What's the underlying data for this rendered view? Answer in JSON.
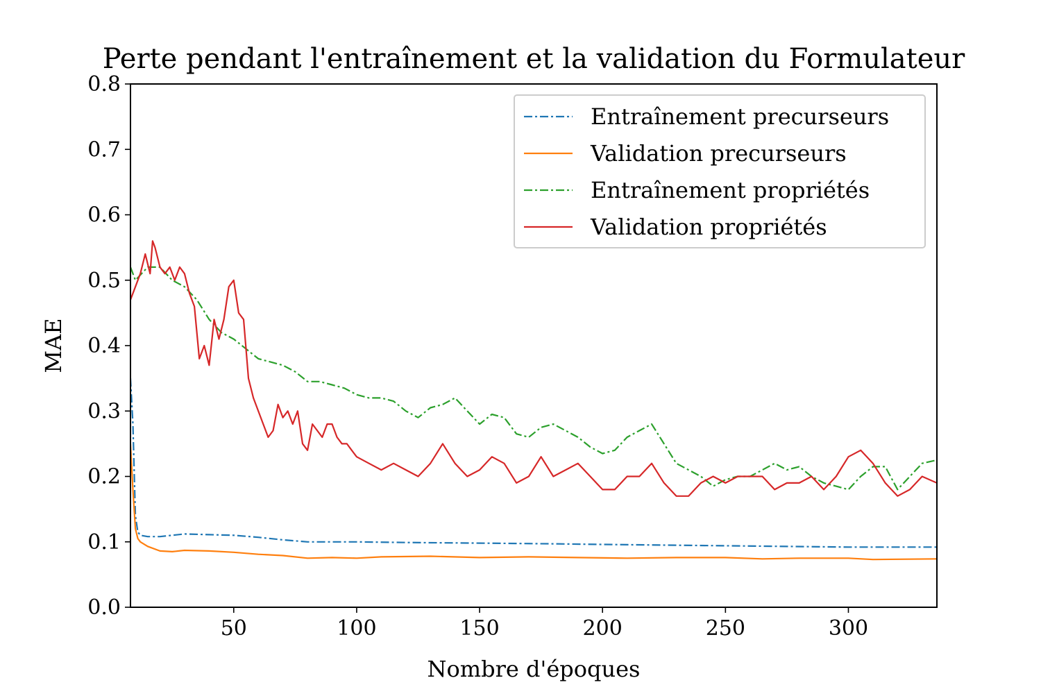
{
  "chart_data": {
    "type": "line",
    "title": "Perte pendant l'entraînement et la validation du Formulateur",
    "xlabel": "Nombre d'époques",
    "ylabel": "MAE",
    "xlim": [
      8,
      336
    ],
    "ylim": [
      0.0,
      0.8
    ],
    "xticks": [
      50,
      100,
      150,
      200,
      250,
      300
    ],
    "yticks": [
      0.0,
      0.1,
      0.2,
      0.3,
      0.4,
      0.5,
      0.6,
      0.7,
      0.8
    ],
    "xtick_labels": [
      "50",
      "100",
      "150",
      "200",
      "250",
      "300"
    ],
    "ytick_labels": [
      "0.0",
      "0.1",
      "0.2",
      "0.3",
      "0.4",
      "0.5",
      "0.6",
      "0.7",
      "0.8"
    ],
    "grid": false,
    "legend_position": "top-right",
    "series": [
      {
        "name": "Entraînement precurseurs",
        "color": "#1f77b4",
        "style": "dashdot",
        "x": [
          8,
          9,
          10,
          11,
          12,
          15,
          20,
          25,
          30,
          40,
          50,
          60,
          70,
          80,
          100,
          120,
          150,
          180,
          200,
          250,
          300,
          336
        ],
        "y": [
          0.35,
          0.28,
          0.14,
          0.115,
          0.11,
          0.108,
          0.108,
          0.11,
          0.112,
          0.111,
          0.11,
          0.107,
          0.103,
          0.1,
          0.1,
          0.099,
          0.098,
          0.097,
          0.096,
          0.094,
          0.092,
          0.092
        ]
      },
      {
        "name": "Validation precurseurs",
        "color": "#ff7f0e",
        "style": "solid",
        "x": [
          8,
          9,
          10,
          11,
          12,
          15,
          20,
          25,
          30,
          40,
          50,
          60,
          70,
          80,
          90,
          100,
          110,
          130,
          150,
          170,
          190,
          210,
          230,
          250,
          265,
          280,
          300,
          310,
          336
        ],
        "y": [
          0.25,
          0.18,
          0.12,
          0.105,
          0.1,
          0.093,
          0.086,
          0.085,
          0.087,
          0.086,
          0.084,
          0.081,
          0.079,
          0.075,
          0.076,
          0.075,
          0.077,
          0.078,
          0.076,
          0.077,
          0.076,
          0.075,
          0.076,
          0.076,
          0.074,
          0.075,
          0.075,
          0.073,
          0.074
        ]
      },
      {
        "name": "Entraînement propriétés",
        "color": "#2ca02c",
        "style": "dashdot",
        "x": [
          8,
          10,
          15,
          20,
          25,
          30,
          35,
          40,
          45,
          50,
          55,
          60,
          65,
          70,
          75,
          80,
          85,
          90,
          95,
          100,
          105,
          110,
          115,
          120,
          125,
          130,
          135,
          140,
          145,
          150,
          155,
          160,
          165,
          170,
          175,
          180,
          185,
          190,
          195,
          200,
          205,
          210,
          215,
          220,
          225,
          230,
          235,
          240,
          245,
          250,
          255,
          260,
          265,
          270,
          275,
          280,
          285,
          290,
          295,
          300,
          305,
          310,
          315,
          320,
          325,
          330,
          336
        ],
        "y": [
          0.52,
          0.5,
          0.52,
          0.52,
          0.5,
          0.49,
          0.47,
          0.44,
          0.42,
          0.41,
          0.395,
          0.38,
          0.375,
          0.37,
          0.36,
          0.345,
          0.345,
          0.34,
          0.335,
          0.325,
          0.32,
          0.32,
          0.315,
          0.3,
          0.29,
          0.305,
          0.31,
          0.32,
          0.3,
          0.28,
          0.295,
          0.29,
          0.265,
          0.26,
          0.275,
          0.28,
          0.27,
          0.26,
          0.245,
          0.235,
          0.24,
          0.26,
          0.27,
          0.28,
          0.25,
          0.22,
          0.21,
          0.2,
          0.185,
          0.195,
          0.2,
          0.2,
          0.21,
          0.22,
          0.21,
          0.215,
          0.2,
          0.19,
          0.185,
          0.18,
          0.2,
          0.215,
          0.215,
          0.18,
          0.2,
          0.22,
          0.225
        ]
      },
      {
        "name": "Validation propriétés",
        "color": "#d62728",
        "style": "solid",
        "x": [
          8,
          10,
          12,
          14,
          16,
          17,
          18,
          20,
          22,
          24,
          26,
          28,
          30,
          32,
          34,
          36,
          38,
          40,
          42,
          44,
          46,
          48,
          50,
          52,
          54,
          56,
          58,
          60,
          62,
          64,
          66,
          68,
          70,
          72,
          74,
          76,
          78,
          80,
          82,
          84,
          86,
          88,
          90,
          92,
          94,
          96,
          98,
          100,
          105,
          110,
          115,
          120,
          125,
          130,
          135,
          140,
          145,
          150,
          155,
          160,
          165,
          170,
          175,
          180,
          185,
          190,
          195,
          200,
          205,
          210,
          215,
          220,
          225,
          230,
          235,
          240,
          245,
          250,
          255,
          260,
          265,
          270,
          275,
          280,
          285,
          290,
          295,
          300,
          305,
          310,
          315,
          320,
          325,
          330,
          336
        ],
        "y": [
          0.47,
          0.49,
          0.51,
          0.54,
          0.51,
          0.56,
          0.55,
          0.52,
          0.51,
          0.52,
          0.5,
          0.52,
          0.51,
          0.48,
          0.46,
          0.38,
          0.4,
          0.37,
          0.44,
          0.41,
          0.44,
          0.49,
          0.5,
          0.45,
          0.44,
          0.35,
          0.32,
          0.3,
          0.28,
          0.26,
          0.27,
          0.31,
          0.29,
          0.3,
          0.28,
          0.3,
          0.25,
          0.24,
          0.28,
          0.27,
          0.26,
          0.28,
          0.28,
          0.26,
          0.25,
          0.25,
          0.24,
          0.23,
          0.22,
          0.21,
          0.22,
          0.21,
          0.2,
          0.22,
          0.25,
          0.22,
          0.2,
          0.21,
          0.23,
          0.22,
          0.19,
          0.2,
          0.23,
          0.2,
          0.21,
          0.22,
          0.2,
          0.18,
          0.18,
          0.2,
          0.2,
          0.22,
          0.19,
          0.17,
          0.17,
          0.19,
          0.2,
          0.19,
          0.2,
          0.2,
          0.2,
          0.18,
          0.19,
          0.19,
          0.2,
          0.18,
          0.2,
          0.23,
          0.24,
          0.22,
          0.19,
          0.17,
          0.18,
          0.2,
          0.19
        ]
      }
    ]
  }
}
